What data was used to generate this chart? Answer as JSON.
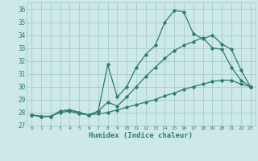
{
  "xlabel": "Humidex (Indice chaleur)",
  "background_color": "#cce8e8",
  "grid_color": "#aacccc",
  "line_color": "#2e7d6e",
  "xlim": [
    -0.5,
    23.5
  ],
  "ylim": [
    27,
    36.5
  ],
  "xticks": [
    0,
    1,
    2,
    3,
    4,
    5,
    6,
    7,
    8,
    9,
    10,
    11,
    12,
    13,
    14,
    15,
    16,
    17,
    18,
    19,
    20,
    21,
    22,
    23
  ],
  "yticks": [
    27,
    28,
    29,
    30,
    31,
    32,
    33,
    34,
    35,
    36
  ],
  "series": [
    {
      "x": [
        0,
        1,
        2,
        3,
        4,
        5,
        6,
        7,
        8,
        9,
        10,
        11,
        12,
        13,
        14,
        15,
        16,
        17,
        18,
        19,
        20,
        21,
        22,
        23
      ],
      "y": [
        27.8,
        27.7,
        27.7,
        28.1,
        28.2,
        28.0,
        27.8,
        28.1,
        31.7,
        29.2,
        30.0,
        31.5,
        32.5,
        33.2,
        35.0,
        35.9,
        35.8,
        34.1,
        33.7,
        34.0,
        33.3,
        32.9,
        31.3,
        30.0
      ]
    },
    {
      "x": [
        0,
        1,
        2,
        3,
        4,
        5,
        6,
        7,
        8,
        9,
        10,
        11,
        12,
        13,
        14,
        15,
        16,
        17,
        18,
        19,
        20,
        21,
        22,
        23
      ],
      "y": [
        27.8,
        27.7,
        27.7,
        28.1,
        28.2,
        28.0,
        27.8,
        28.1,
        28.8,
        28.5,
        29.2,
        30.0,
        30.8,
        31.5,
        32.2,
        32.8,
        33.2,
        33.5,
        33.8,
        33.0,
        32.9,
        31.5,
        30.5,
        30.0
      ]
    },
    {
      "x": [
        0,
        1,
        2,
        3,
        4,
        5,
        6,
        7,
        8,
        9,
        10,
        11,
        12,
        13,
        14,
        15,
        16,
        17,
        18,
        19,
        20,
        21,
        22,
        23
      ],
      "y": [
        27.8,
        27.7,
        27.7,
        28.0,
        28.1,
        27.9,
        27.8,
        27.9,
        28.0,
        28.2,
        28.4,
        28.6,
        28.8,
        29.0,
        29.3,
        29.5,
        29.8,
        30.0,
        30.2,
        30.4,
        30.5,
        30.5,
        30.2,
        30.0
      ]
    }
  ]
}
